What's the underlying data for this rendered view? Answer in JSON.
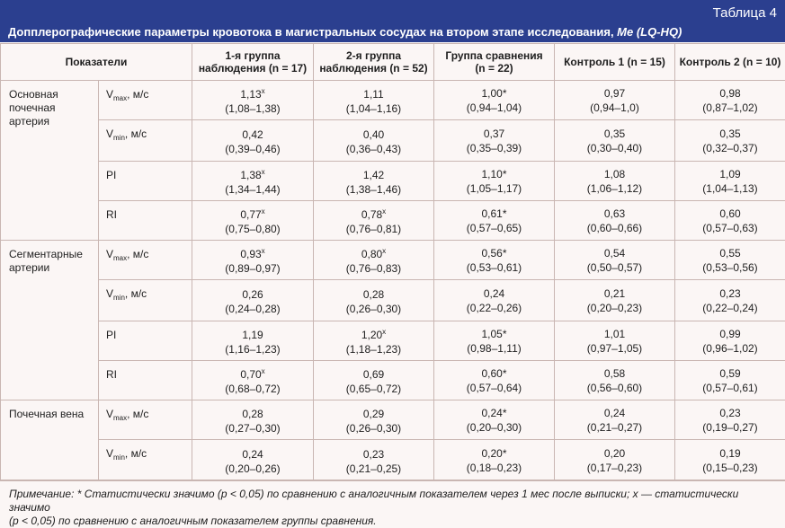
{
  "header": {
    "table_no": "Таблица 4",
    "caption": "Допплерографические параметры кровотока в магистральных сосудах на втором этапе исследования, ",
    "caption_em": "Me (LQ-HQ)"
  },
  "columns": {
    "indicators": "Показатели",
    "g1_line1": "1-я группа",
    "g1_line2": "наблюдения (n = 17)",
    "g2_line1": "2-я группа",
    "g2_line2": "наблюдения (n = 52)",
    "cmp_line1": "Группа сравнения",
    "cmp_line2": "(n = 22)",
    "c1": "Контроль 1 (n = 15)",
    "c2": "Контроль 2 (n = 10)"
  },
  "groups": {
    "renal_artery": "Основная почечная артерия",
    "segmental": "Сегментарные артерии",
    "renal_vein": "Почечная вена"
  },
  "params": {
    "v": "V",
    "max": "max",
    "min": "min",
    "unit": ", м/с",
    "pi": "PI",
    "ri": "RI"
  },
  "rows": [
    {
      "g1": "1,13",
      "g1_mark": "x",
      "g1_range": "(1,08–1,38)",
      "g2": "1,11",
      "g2_mark": "",
      "g2_range": "(1,04–1,16)",
      "cmp": "1,00",
      "cmp_mark": "*",
      "cmp_range": "(0,94–1,04)",
      "c1": "0,97",
      "c1_range": "(0,94–1,0)",
      "c2": "0,98",
      "c2_range": "(0,87–1,02)"
    },
    {
      "g1": "0,42",
      "g1_mark": "",
      "g1_range": "(0,39–0,46)",
      "g2": "0,40",
      "g2_mark": "",
      "g2_range": "(0,36–0,43)",
      "cmp": "0,37",
      "cmp_mark": "",
      "cmp_range": "(0,35–0,39)",
      "c1": "0,35",
      "c1_range": "(0,30–0,40)",
      "c2": "0,35",
      "c2_range": "(0,32–0,37)"
    },
    {
      "g1": "1,38",
      "g1_mark": "x",
      "g1_range": "(1,34–1,44)",
      "g2": "1,42",
      "g2_mark": "",
      "g2_range": "(1,38–1,46)",
      "cmp": "1,10",
      "cmp_mark": "*",
      "cmp_range": "(1,05–1,17)",
      "c1": "1,08",
      "c1_range": "(1,06–1,12)",
      "c2": "1,09",
      "c2_range": "(1,04–1,13)"
    },
    {
      "g1": "0,77",
      "g1_mark": "x",
      "g1_range": "(0,75–0,80)",
      "g2": "0,78",
      "g2_mark": "x",
      "g2_range": "(0,76–0,81)",
      "cmp": "0,61",
      "cmp_mark": "*",
      "cmp_range": "(0,57–0,65)",
      "c1": "0,63",
      "c1_range": "(0,60–0,66)",
      "c2": "0,60",
      "c2_range": "(0,57–0,63)"
    },
    {
      "g1": "0,93",
      "g1_mark": "x",
      "g1_range": "(0,89–0,97)",
      "g2": "0,80",
      "g2_mark": "x",
      "g2_range": "(0,76–0,83)",
      "cmp": "0,56",
      "cmp_mark": "*",
      "cmp_range": "(0,53–0,61)",
      "c1": "0,54",
      "c1_range": "(0,50–0,57)",
      "c2": "0,55",
      "c2_range": "(0,53–0,56)"
    },
    {
      "g1": "0,26",
      "g1_mark": "",
      "g1_range": "(0,24–0,28)",
      "g2": "0,28",
      "g2_mark": "",
      "g2_range": "(0,26–0,30)",
      "cmp": "0,24",
      "cmp_mark": "",
      "cmp_range": "(0,22–0,26)",
      "c1": "0,21",
      "c1_range": "(0,20–0,23)",
      "c2": "0,23",
      "c2_range": "(0,22–0,24)"
    },
    {
      "g1": "1,19",
      "g1_mark": "",
      "g1_range": "(1,16–1,23)",
      "g2": "1,20",
      "g2_mark": "x",
      "g2_range": "(1,18–1,23)",
      "cmp": "1,05",
      "cmp_mark": "*",
      "cmp_range": "(0,98–1,11)",
      "c1": "1,01",
      "c1_range": "(0,97–1,05)",
      "c2": "0,99",
      "c2_range": "(0,96–1,02)"
    },
    {
      "g1": "0,70",
      "g1_mark": "x",
      "g1_range": "(0,68–0,72)",
      "g2": "0,69",
      "g2_mark": "",
      "g2_range": "(0,65–0,72)",
      "cmp": "0,60",
      "cmp_mark": "*",
      "cmp_range": "(0,57–0,64)",
      "c1": "0,58",
      "c1_range": "(0,56–0,60)",
      "c2": "0,59",
      "c2_range": "(0,57–0,61)"
    },
    {
      "g1": "0,28",
      "g1_mark": "",
      "g1_range": "(0,27–0,30)",
      "g2": "0,29",
      "g2_mark": "",
      "g2_range": "(0,26–0,30)",
      "cmp": "0,24",
      "cmp_mark": "*",
      "cmp_range": "(0,20–0,30)",
      "c1": "0,24",
      "c1_range": "(0,21–0,27)",
      "c2": "0,23",
      "c2_range": "(0,19–0,27)"
    },
    {
      "g1": "0,24",
      "g1_mark": "",
      "g1_range": "(0,20–0,26)",
      "g2": "0,23",
      "g2_mark": "",
      "g2_range": "(0,21–0,25)",
      "cmp": "0,20",
      "cmp_mark": "*",
      "cmp_range": "(0,18–0,23)",
      "c1": "0,20",
      "c1_range": "(0,17–0,23)",
      "c2": "0,19",
      "c2_range": "(0,15–0,23)"
    }
  ],
  "note": {
    "line1": "Примечание: * Статистически значимо (p < 0,05) по сравнению с аналогичным показателем через 1 мес после выписки; x — статистически значимо",
    "line2": "(p < 0,05) по сравнению с аналогичным показателем группы сравнения."
  },
  "colors": {
    "header_bg": "#2b3f8f",
    "page_bg": "#fbf6f5",
    "grid_line": "#c9b6b2"
  }
}
